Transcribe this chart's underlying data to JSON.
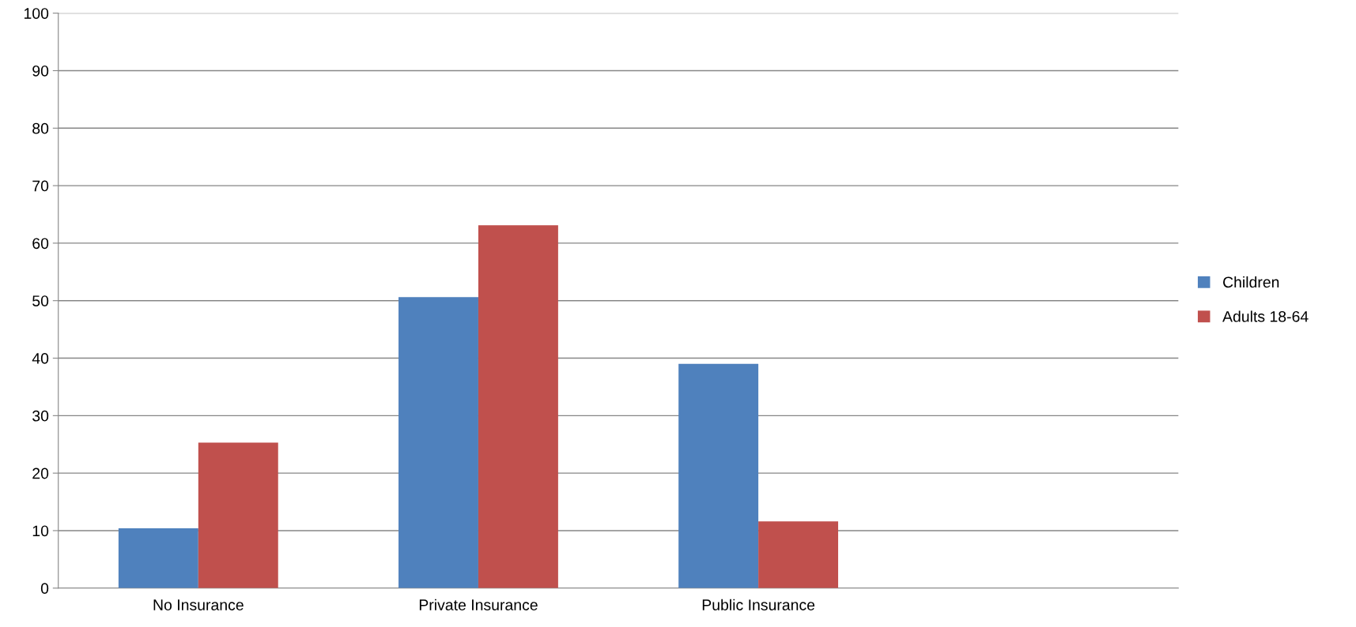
{
  "chart_data": {
    "type": "bar",
    "categories": [
      "No Insurance",
      "Private Insurance",
      "Public Insurance",
      null
    ],
    "series": [
      {
        "name": "Children",
        "color": "#4f81bd",
        "values": [
          10.4,
          50.6,
          39.0,
          null
        ]
      },
      {
        "name": "Adults 18-64",
        "color": "#c0504d",
        "values": [
          25.3,
          63.1,
          11.6,
          null
        ]
      }
    ],
    "ylim": [
      0,
      100
    ],
    "yticks": [
      0,
      10,
      20,
      30,
      40,
      50,
      60,
      70,
      80,
      90,
      100
    ],
    "grid": "y",
    "legend": "right"
  }
}
